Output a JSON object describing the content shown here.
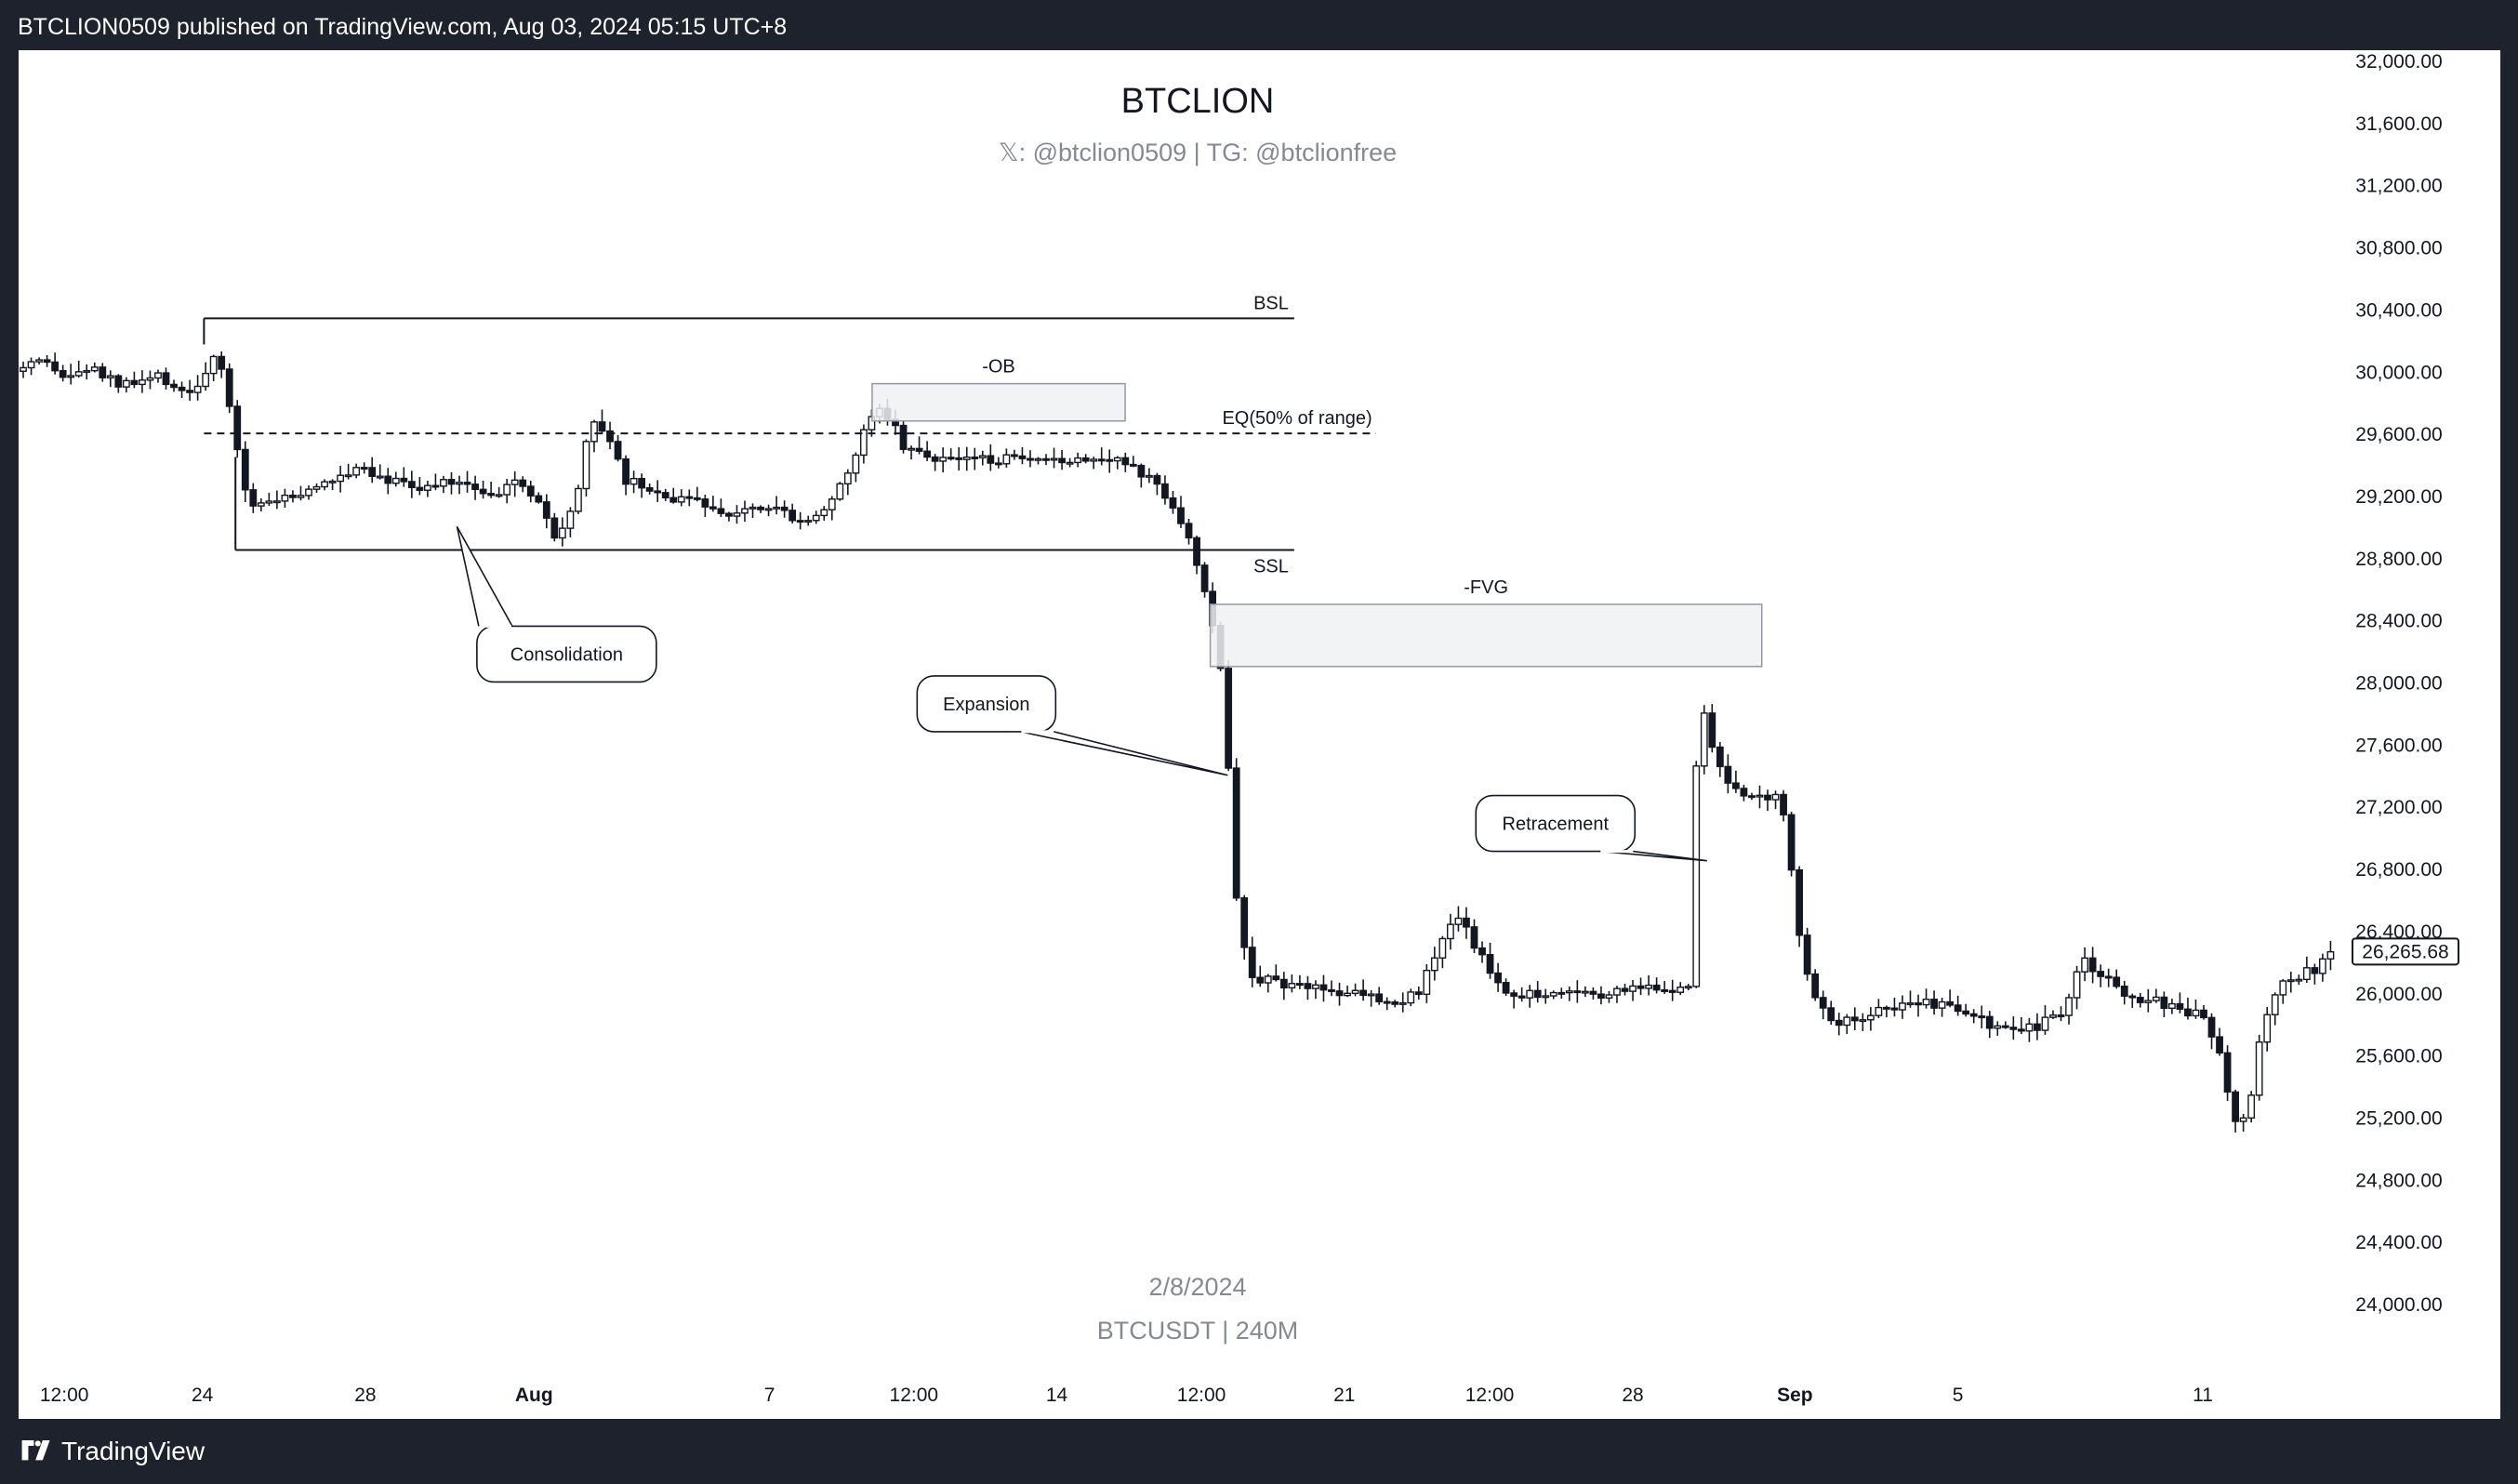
{
  "header": {
    "publish_info": "BTCLION0509 published on TradingView.com, Aug 03, 2024 05:15 UTC+8"
  },
  "footer": {
    "brand": "TradingView",
    "logo_icon": "tradingview-logo-icon"
  },
  "chart": {
    "title": "BTCLION",
    "subtitle": "𝕏: @btclion0509 | TG: @btclionfree",
    "watermark_date": "2/8/2024",
    "watermark_symbol": "BTCUSDT | 240M",
    "price_tag": "26,265.68"
  },
  "chart_data": {
    "type": "candlestick",
    "symbol": "BTCUSDT",
    "interval": "240M",
    "ylim": [
      23800,
      32100
    ],
    "y_ticks": [
      "32,000.00",
      "31,600.00",
      "31,200.00",
      "30,800.00",
      "30,400.00",
      "30,000.00",
      "29,600.00",
      "29,200.00",
      "28,800.00",
      "28,400.00",
      "28,000.00",
      "27,600.00",
      "27,200.00",
      "26,800.00",
      "26,400.00",
      "26,000.00",
      "25,600.00",
      "25,200.00",
      "24,800.00",
      "24,400.00",
      "24,000.00"
    ],
    "x_ticks": [
      {
        "label": "12:00",
        "pos": 0.0196,
        "bold": false
      },
      {
        "label": "24",
        "pos": 0.0788,
        "bold": false
      },
      {
        "label": "28",
        "pos": 0.1487,
        "bold": false
      },
      {
        "label": "Aug",
        "pos": 0.221,
        "bold": true
      },
      {
        "label": "7",
        "pos": 0.322,
        "bold": false
      },
      {
        "label": "12:00",
        "pos": 0.3839,
        "bold": false
      },
      {
        "label": "14",
        "pos": 0.4452,
        "bold": false
      },
      {
        "label": "12:00",
        "pos": 0.5072,
        "bold": false
      },
      {
        "label": "21",
        "pos": 0.5685,
        "bold": false
      },
      {
        "label": "12:00",
        "pos": 0.6308,
        "bold": false
      },
      {
        "label": "28",
        "pos": 0.6922,
        "bold": false
      },
      {
        "label": "Sep",
        "pos": 0.7617,
        "bold": true
      },
      {
        "label": "5",
        "pos": 0.8316,
        "bold": false
      },
      {
        "label": "11",
        "pos": 0.9366,
        "bold": false
      }
    ],
    "last_price": 26265.68,
    "price_path": [
      [
        0.0,
        30000
      ],
      [
        0.01,
        30050
      ],
      [
        0.02,
        29950
      ],
      [
        0.03,
        30020
      ],
      [
        0.045,
        29900
      ],
      [
        0.06,
        29960
      ],
      [
        0.075,
        29850
      ],
      [
        0.08,
        30000
      ],
      [
        0.085,
        30100
      ],
      [
        0.09,
        29800
      ],
      [
        0.096,
        29300
      ],
      [
        0.1,
        29150
      ],
      [
        0.12,
        29200
      ],
      [
        0.135,
        29300
      ],
      [
        0.145,
        29400
      ],
      [
        0.16,
        29300
      ],
      [
        0.175,
        29250
      ],
      [
        0.19,
        29300
      ],
      [
        0.205,
        29200
      ],
      [
        0.215,
        29300
      ],
      [
        0.225,
        29100
      ],
      [
        0.23,
        28900
      ],
      [
        0.238,
        29100
      ],
      [
        0.243,
        29500
      ],
      [
        0.248,
        29700
      ],
      [
        0.254,
        29500
      ],
      [
        0.26,
        29300
      ],
      [
        0.275,
        29200
      ],
      [
        0.29,
        29150
      ],
      [
        0.305,
        29100
      ],
      [
        0.32,
        29150
      ],
      [
        0.335,
        29050
      ],
      [
        0.345,
        29100
      ],
      [
        0.355,
        29300
      ],
      [
        0.362,
        29600
      ],
      [
        0.368,
        29800
      ],
      [
        0.374,
        29700
      ],
      [
        0.38,
        29500
      ],
      [
        0.392,
        29450
      ],
      [
        0.41,
        29430
      ],
      [
        0.425,
        29430
      ],
      [
        0.44,
        29400
      ],
      [
        0.455,
        29450
      ],
      [
        0.47,
        29450
      ],
      [
        0.48,
        29350
      ],
      [
        0.49,
        29250
      ],
      [
        0.497,
        29100
      ],
      [
        0.502,
        28900
      ],
      [
        0.508,
        28600
      ],
      [
        0.513,
        28300
      ],
      [
        0.516,
        28000
      ],
      [
        0.518,
        27700
      ],
      [
        0.521,
        26800
      ],
      [
        0.524,
        26400
      ],
      [
        0.527,
        26200
      ],
      [
        0.53,
        26000
      ],
      [
        0.535,
        26100
      ],
      [
        0.545,
        26050
      ],
      [
        0.555,
        26050
      ],
      [
        0.565,
        26000
      ],
      [
        0.575,
        26000
      ],
      [
        0.59,
        25950
      ],
      [
        0.6,
        26000
      ],
      [
        0.61,
        26300
      ],
      [
        0.617,
        26500
      ],
      [
        0.625,
        26300
      ],
      [
        0.632,
        26100
      ],
      [
        0.64,
        26000
      ],
      [
        0.655,
        26000
      ],
      [
        0.67,
        26000
      ],
      [
        0.685,
        26000
      ],
      [
        0.7,
        26050
      ],
      [
        0.71,
        26000
      ],
      [
        0.716,
        26050
      ],
      [
        0.719,
        27400
      ],
      [
        0.723,
        27800
      ],
      [
        0.728,
        27500
      ],
      [
        0.735,
        27300
      ],
      [
        0.745,
        27250
      ],
      [
        0.755,
        27300
      ],
      [
        0.76,
        26800
      ],
      [
        0.765,
        26200
      ],
      [
        0.77,
        26000
      ],
      [
        0.78,
        25800
      ],
      [
        0.79,
        25850
      ],
      [
        0.8,
        25900
      ],
      [
        0.815,
        25950
      ],
      [
        0.83,
        25900
      ],
      [
        0.845,
        25800
      ],
      [
        0.86,
        25750
      ],
      [
        0.875,
        25850
      ],
      [
        0.88,
        26000
      ],
      [
        0.885,
        26200
      ],
      [
        0.895,
        26100
      ],
      [
        0.905,
        25950
      ],
      [
        0.915,
        25950
      ],
      [
        0.925,
        25900
      ],
      [
        0.935,
        25850
      ],
      [
        0.942,
        25700
      ],
      [
        0.947,
        25400
      ],
      [
        0.952,
        25100
      ],
      [
        0.957,
        25300
      ],
      [
        0.962,
        25800
      ],
      [
        0.967,
        26000
      ],
      [
        0.975,
        26100
      ],
      [
        0.985,
        26150
      ],
      [
        0.992,
        26265.68
      ]
    ],
    "annotations": {
      "bsl": {
        "label": "BSL",
        "price": 30340,
        "from": 0.0795,
        "to": 0.547
      },
      "ssl": {
        "label": "SSL",
        "price": 28850,
        "from": 0.093,
        "to": 0.547
      },
      "eq": {
        "label": "EQ(50% of range)",
        "price": 29600,
        "from": 0.0795,
        "to": 0.582
      },
      "ob": {
        "label": "-OB",
        "price_top": 29920,
        "price_bottom": 29680,
        "from": 0.366,
        "to": 0.4745
      },
      "fvg": {
        "label": "-FVG",
        "price_top": 28500,
        "price_bottom": 28100,
        "from": 0.511,
        "to": 0.7475
      },
      "callouts": [
        {
          "label": "Consolidation",
          "box_center": [
            0.235,
            28180
          ],
          "target": [
            0.188,
            29000
          ]
        },
        {
          "label": "Expansion",
          "box_center": [
            0.415,
            27860
          ],
          "target": [
            0.5185,
            27400
          ]
        },
        {
          "label": "Retracement",
          "box_center": [
            0.659,
            27090
          ],
          "target": [
            0.724,
            26850
          ]
        }
      ]
    }
  }
}
